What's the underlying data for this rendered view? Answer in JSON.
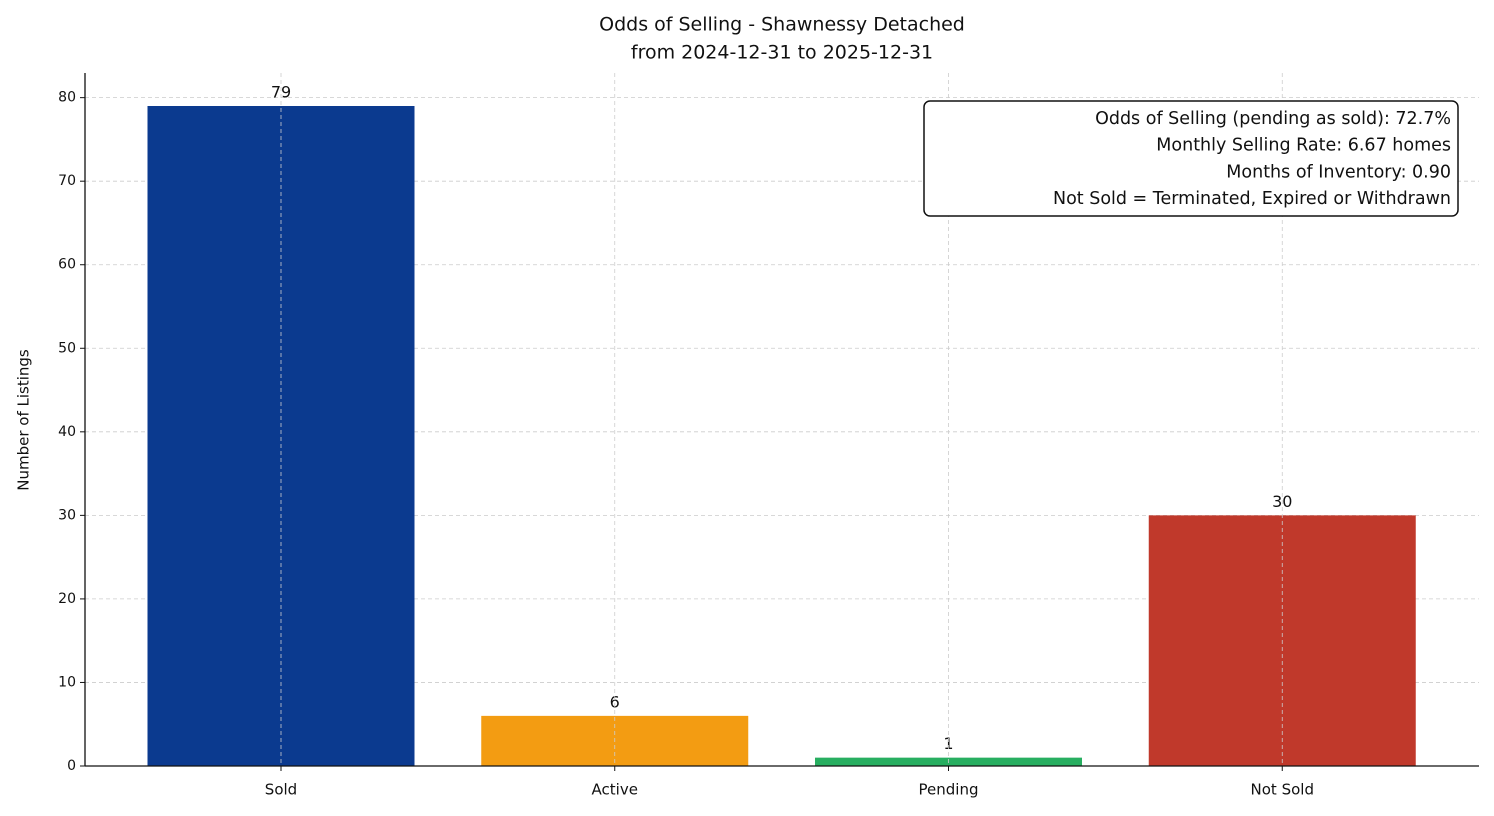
{
  "chart_data": {
    "type": "bar",
    "title": [
      "Odds of Selling - Shawnessy Detached",
      "from 2024-12-31 to 2025-12-31"
    ],
    "y_label": "Number of Listings",
    "categories": [
      "Sold",
      "Active",
      "Pending",
      "Not Sold"
    ],
    "values": [
      79,
      6,
      1,
      30
    ],
    "colors": [
      "#0b3a8f",
      "#f39c12",
      "#27ae60",
      "#c0392b"
    ],
    "ylim": [
      0,
      82.95
    ],
    "yticks": [
      0,
      10,
      20,
      30,
      40,
      50,
      60,
      70,
      80
    ],
    "grid": true,
    "annotation": [
      "Odds of Selling (pending as sold): 72.7%",
      "Monthly Selling Rate: 6.67 homes",
      "Months of Inventory: 0.90",
      "Not Sold = Terminated, Expired or Withdrawn"
    ]
  }
}
